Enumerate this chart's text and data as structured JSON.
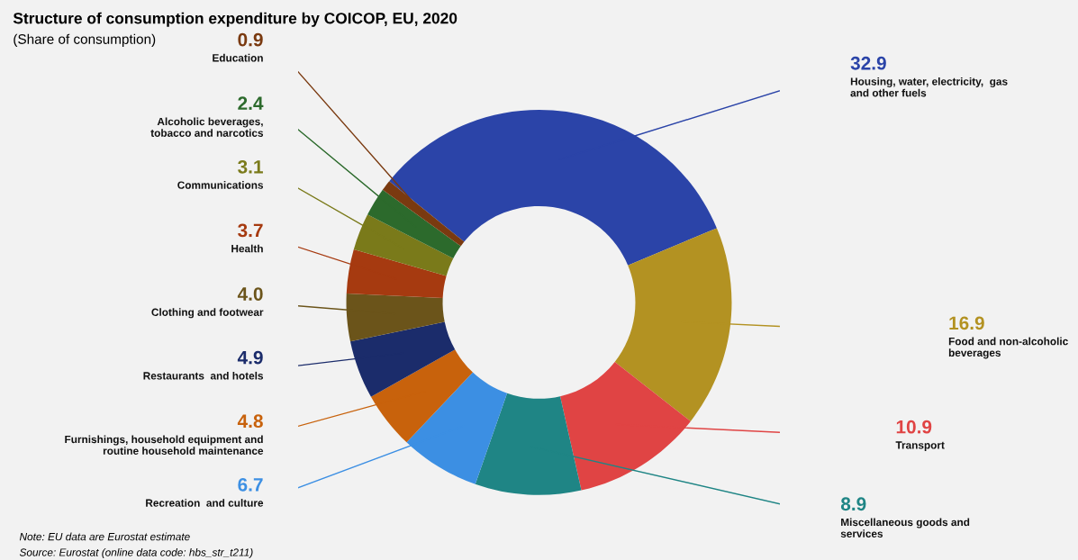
{
  "chart_data": {
    "type": "donut",
    "title": "Structure of consumption expenditure by COICOP, EU, 2020",
    "subtitle": "(Share of consumption)",
    "categories": [
      "Housing, water, electricity,  gas\nand other fuels",
      "Food and non-alcoholic\nbeverages",
      "Transport",
      "Miscellaneous goods and\nservices",
      "Recreation  and culture",
      "Furnishings, household equipment and\nroutine household maintenance",
      "Restaurants  and hotels",
      "Clothing and footwear",
      "Health",
      "Communications",
      "Alcoholic beverages,\ntobacco and narcotics",
      "Education"
    ],
    "values": [
      32.9,
      16.9,
      10.9,
      8.9,
      6.7,
      4.8,
      4.9,
      4.0,
      3.7,
      3.1,
      2.4,
      0.9
    ],
    "colors": [
      "#2b44a8",
      "#b39222",
      "#e04444",
      "#1f8585",
      "#3c8fe3",
      "#c8620c",
      "#1b2c6b",
      "#6b541a",
      "#a63a10",
      "#7a7a1a",
      "#2c6a2c",
      "#7a3a10"
    ],
    "value_labels": [
      "32.9",
      "16.9",
      "10.9",
      "8.9",
      "6.7",
      "4.8",
      "4.9",
      "4.0",
      "3.7",
      "3.1",
      "2.4",
      "0.9"
    ],
    "legend": false,
    "annotations": [
      "Note: EU data are Eurostat estimate",
      "Source: Eurostat (online data code: hbs_str_t211)"
    ]
  }
}
